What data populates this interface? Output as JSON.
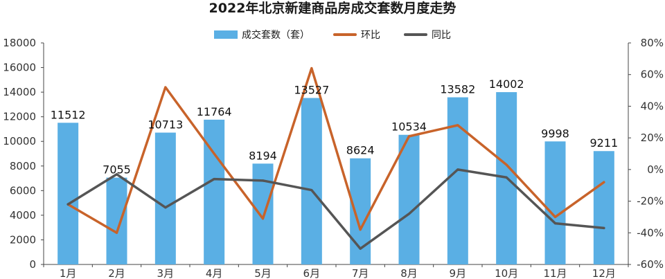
{
  "title": "2022年北京新建商品房成交套数月度走势",
  "legend": {
    "bar_label": "成交套数（套）",
    "mom_label": "环比",
    "yoy_label": "同比"
  },
  "colors": {
    "bar": "#5aafe4",
    "mom": "#c8632a",
    "yoy": "#555555",
    "axis": "#444444"
  },
  "chart_data": {
    "type": "bar",
    "title": "2022年北京新建商品房成交套数月度走势",
    "categories": [
      "1月",
      "2月",
      "3月",
      "4月",
      "5月",
      "6月",
      "7月",
      "8月",
      "9月",
      "10月",
      "11月",
      "12月"
    ],
    "series": [
      {
        "name": "成交套数（套）",
        "type": "bar",
        "axis": "left",
        "values": [
          11512,
          7055,
          10713,
          11764,
          8194,
          13527,
          8624,
          10534,
          13582,
          14002,
          9998,
          9211
        ]
      },
      {
        "name": "环比",
        "type": "line",
        "axis": "right",
        "unit": "%",
        "values": [
          -22,
          -40,
          52,
          10,
          -31,
          64,
          -38,
          21,
          28,
          3,
          -30,
          -8
        ]
      },
      {
        "name": "同比",
        "type": "line",
        "axis": "right",
        "unit": "%",
        "values": [
          -22,
          -3,
          -24,
          -6,
          -7,
          -13,
          -50,
          -28,
          0,
          -5,
          -34,
          -37
        ]
      }
    ],
    "left_axis": {
      "min": 0,
      "max": 18000,
      "ticks": [
        "0",
        "2000",
        "4000",
        "6000",
        "8000",
        "10000",
        "12000",
        "14000",
        "16000",
        "18000"
      ]
    },
    "right_axis": {
      "min": -60,
      "max": 80,
      "ticks": [
        "-60%",
        "-40%",
        "-20%",
        "0%",
        "20%",
        "40%",
        "60%",
        "80%"
      ]
    },
    "grid": false,
    "legend_position": "top-center"
  }
}
